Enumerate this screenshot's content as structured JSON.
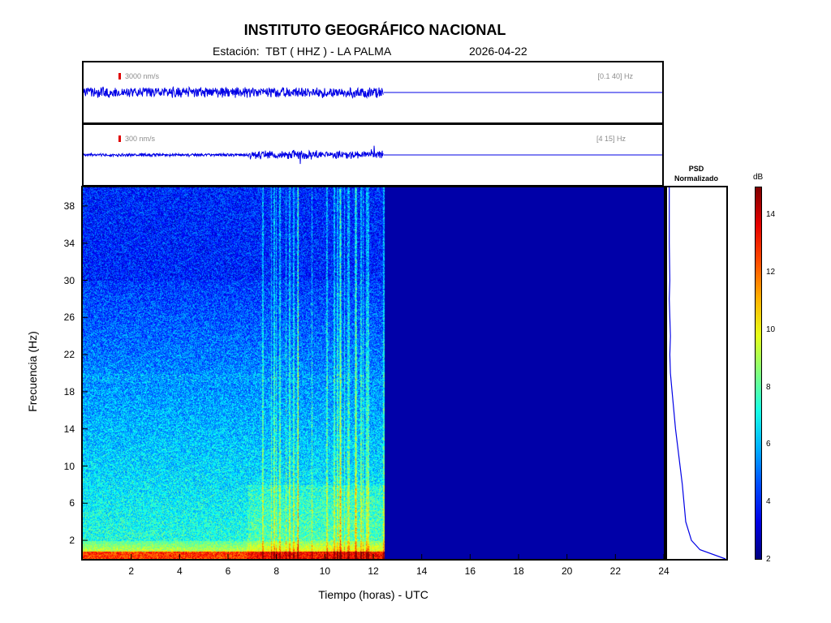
{
  "header": {
    "title": "INSTITUTO GEOGRÁFICO NACIONAL",
    "station": "Estación:  TBT ( HHZ ) - LA PALMA",
    "date": "2026-04-22"
  },
  "traces": [
    {
      "amplitude_label": "3000 nm/s",
      "band_label": "[0.1 40] Hz",
      "data_end_hour": 12.45,
      "color": "#0000e6"
    },
    {
      "amplitude_label": "300 nm/s",
      "band_label": "[4 15] Hz",
      "data_end_hour": 12.45,
      "color": "#0000e6"
    }
  ],
  "psd": {
    "title_line1": "PSD",
    "title_line2": "Normalizado"
  },
  "colorbar": {
    "unit": "dB",
    "ticks": [
      "2",
      "4",
      "6",
      "8",
      "10",
      "12",
      "14"
    ],
    "min": 2,
    "max": 15,
    "colormap": "jet"
  },
  "chart_data": {
    "type": "heatmap",
    "xlabel": "Tiempo (horas) - UTC",
    "ylabel": "Frecuencia  (Hz)",
    "xlim": [
      0,
      24
    ],
    "ylim": [
      0,
      40
    ],
    "x_ticks": [
      "2",
      "4",
      "6",
      "8",
      "10",
      "12",
      "14",
      "16",
      "18",
      "20",
      "22",
      "24"
    ],
    "y_ticks": [
      "2",
      "6",
      "10",
      "14",
      "18",
      "22",
      "26",
      "30",
      "34",
      "38"
    ],
    "data_end_hour": 12.45,
    "activity_start_hour": 6.8,
    "psd_profile": {
      "frequency_hz": [
        0,
        1,
        2,
        4,
        6,
        8,
        10,
        12,
        14,
        16,
        18,
        20,
        22,
        24,
        26,
        28,
        30,
        34,
        38,
        40
      ],
      "normalized": [
        1.0,
        0.55,
        0.4,
        0.3,
        0.27,
        0.24,
        0.2,
        0.16,
        0.12,
        0.09,
        0.06,
        0.03,
        0.02,
        0.03,
        0.02,
        0.01,
        0.02,
        0.01,
        0.01,
        0.01
      ]
    }
  }
}
